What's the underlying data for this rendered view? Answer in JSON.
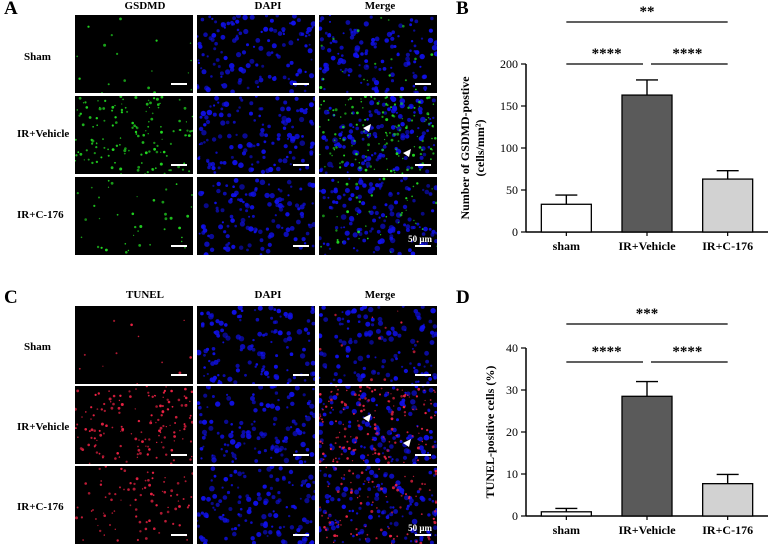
{
  "panels": {
    "A": {
      "letter": "A",
      "columns": [
        "GSDMD",
        "DAPI",
        "Merge"
      ],
      "rows": [
        "Sham",
        "IR+Vehicle",
        "IR+C-176"
      ],
      "scale_label": "50 μm",
      "marker_color": "#22dd22"
    },
    "C": {
      "letter": "C",
      "columns": [
        "TUNEL",
        "DAPI",
        "Merge"
      ],
      "rows": [
        "Sham",
        "IR+Vehicle",
        "IR+C-176"
      ],
      "scale_label": "50 μm",
      "marker_color": "#ee2244"
    }
  },
  "colors": {
    "nuclei": "#1010e8",
    "sham_bar": "#ffffff",
    "vehicle_bar": "#5a5a5a",
    "c176_bar": "#d2d2d2"
  },
  "chart_data": [
    {
      "letter": "B",
      "type": "bar",
      "categories": [
        "sham",
        "IR+Vehicle",
        "IR+C-176"
      ],
      "values": [
        33,
        163,
        63
      ],
      "errors": [
        11,
        18,
        10
      ],
      "ylabel_line1": "Number of GSDMD-postive",
      "ylabel_line2": "(cells/mm²)",
      "ylim": [
        0,
        200
      ],
      "yticks": [
        0,
        50,
        100,
        150,
        200
      ],
      "comparisons": [
        {
          "from": 0,
          "to": 2,
          "label": "**"
        },
        {
          "from": 0,
          "to": 1,
          "label": "****"
        },
        {
          "from": 1,
          "to": 2,
          "label": "****"
        }
      ]
    },
    {
      "letter": "D",
      "type": "bar",
      "categories": [
        "sham",
        "IR+Vehicle",
        "IR+C-176"
      ],
      "values": [
        1,
        28.5,
        7.7
      ],
      "errors": [
        0.8,
        3.5,
        2.2
      ],
      "ylabel_line1": "TUNEL-positive cells (%)",
      "ylabel_line2": "",
      "ylim": [
        0,
        40
      ],
      "yticks": [
        0,
        10,
        20,
        30,
        40
      ],
      "comparisons": [
        {
          "from": 0,
          "to": 2,
          "label": "***"
        },
        {
          "from": 0,
          "to": 1,
          "label": "****"
        },
        {
          "from": 1,
          "to": 2,
          "label": "****"
        }
      ]
    }
  ]
}
